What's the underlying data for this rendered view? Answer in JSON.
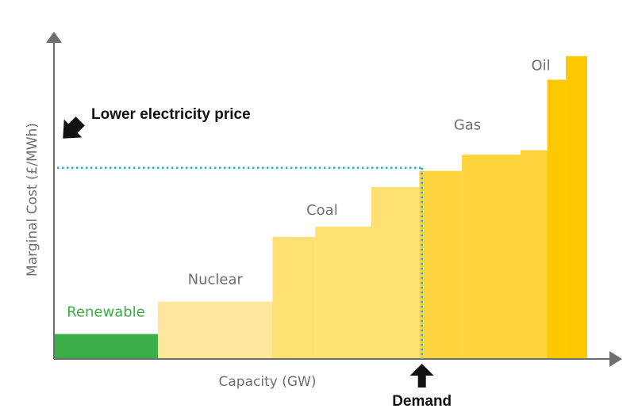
{
  "chart_data": {
    "type": "bar",
    "subtype": "merit-order-step",
    "xlabel": "Capacity (GW)",
    "ylabel": "Marginal Cost (£/MWh)",
    "grid": false,
    "axis_arrows": true,
    "tick_labels": false,
    "xlim": [
      0,
      100
    ],
    "ylim": [
      0,
      100
    ],
    "series": [
      {
        "name": "Renewable",
        "color": "#3cae47",
        "label_color": "#3cae47",
        "segments": [
          {
            "x0": 0,
            "x1": 19.5,
            "y": 8.5
          }
        ]
      },
      {
        "name": "Nuclear",
        "color": "#fde79d",
        "label_color": "#6e6e6e",
        "segments": [
          {
            "x0": 19.5,
            "x1": 41.0,
            "y": 19.5
          }
        ]
      },
      {
        "name": "Coal",
        "color": "#fddf72",
        "label_color": "#6e6e6e",
        "segments": [
          {
            "x0": 41.0,
            "x1": 49.0,
            "y": 41.5
          },
          {
            "x0": 49.0,
            "x1": 59.5,
            "y": 45.0
          },
          {
            "x0": 59.5,
            "x1": 68.5,
            "y": 58.5
          }
        ]
      },
      {
        "name": "Gas",
        "color": "#fdd43e",
        "label_color": "#6e6e6e",
        "segments": [
          {
            "x0": 68.5,
            "x1": 76.5,
            "y": 64.0
          },
          {
            "x0": 76.5,
            "x1": 87.5,
            "y": 69.5
          },
          {
            "x0": 87.5,
            "x1": 92.5,
            "y": 71.0
          }
        ]
      },
      {
        "name": "Oil",
        "color": "#fcc900",
        "label_color": "#6e6e6e",
        "segments": [
          {
            "x0": 92.5,
            "x1": 96.0,
            "y": 95.0
          },
          {
            "x0": 96.0,
            "x1": 100,
            "y": 103.0
          }
        ]
      }
    ],
    "demand": {
      "x": 69.0,
      "label": "Demand"
    },
    "price_line": {
      "y": 65.0,
      "color": "#2ba9d6"
    },
    "annotations": [
      {
        "text": "Lower electricity price"
      }
    ]
  }
}
